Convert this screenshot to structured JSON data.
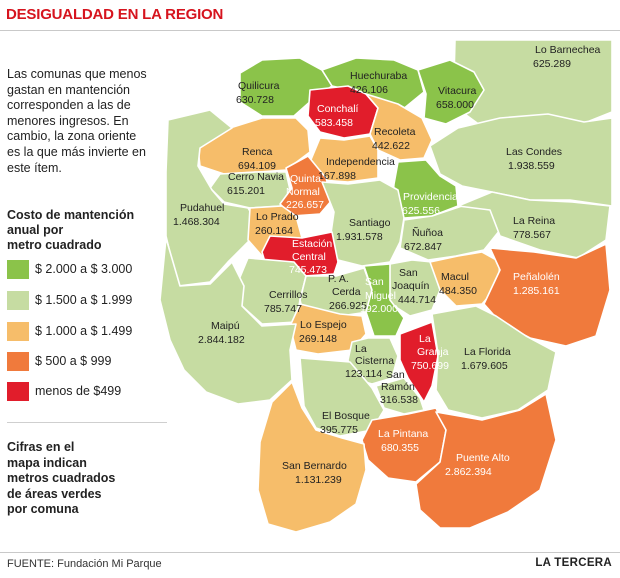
{
  "title": "DESIGUALDAD EN LA REGION",
  "intro": "Las comunas que menos\ngastan en mantención\ncorresponden a las de\nmenores ingresos. En\ncambio, la zona oriente\nes la que más invierte en\neste ítem.",
  "legend": {
    "title": "Costo de mantención\nanual por\nmetro cuadrado",
    "items": [
      {
        "label": "$ 2.000 a $ 3.000",
        "color": "#8bc34a"
      },
      {
        "label": "$ 1.500 a $ 1.999",
        "color": "#c6dca2"
      },
      {
        "label": "$ 1.000 a $ 1.499",
        "color": "#f6bd6a"
      },
      {
        "label": "$ 500 a $ 999",
        "color": "#f07a3c"
      },
      {
        "label": "menos de $499",
        "color": "#e11d2b"
      }
    ]
  },
  "note": "Cifras en el\nmapa indican\nmetros cuadrados\nde áreas verdes\npor comuna",
  "source": "FUENTE: Fundación Mi Parque",
  "brand": "LA TERCERA",
  "comunas": [
    {
      "id": "lo-barnechea",
      "name": "Lo Barnechea",
      "value": "625.289",
      "color": "#c6dca2"
    },
    {
      "id": "quilicura",
      "name": "Quilicura",
      "value": "630.728",
      "color": "#8bc34a"
    },
    {
      "id": "huechuraba",
      "name": "Huechuraba",
      "value": "426.106",
      "color": "#8bc34a"
    },
    {
      "id": "vitacura",
      "name": "Vitacura",
      "value": "658.000",
      "color": "#8bc34a"
    },
    {
      "id": "conchali",
      "name": "Conchalí",
      "value": "583.458",
      "color": "#e11d2b"
    },
    {
      "id": "recoleta",
      "name": "Recoleta",
      "value": "442.622",
      "color": "#f6bd6a"
    },
    {
      "id": "renca",
      "name": "Renca",
      "value": "694.109",
      "color": "#f6bd6a"
    },
    {
      "id": "independencia",
      "name": "Independencia",
      "value": "167.898",
      "color": "#f6bd6a"
    },
    {
      "id": "las-condes",
      "name": "Las Condes",
      "value": "1.938.559",
      "color": "#c6dca2"
    },
    {
      "id": "cerro-navia",
      "name": "Cerro Navia",
      "value": "615.201",
      "color": "#c6dca2"
    },
    {
      "id": "quinta-normal",
      "name": "Quinta Normal",
      "value": "226.657",
      "color": "#f07a3c"
    },
    {
      "id": "providencia",
      "name": "Providencia",
      "value": "625.556",
      "color": "#8bc34a"
    },
    {
      "id": "pudahuel",
      "name": "Pudahuel",
      "value": "1.468.304",
      "color": "#c6dca2"
    },
    {
      "id": "lo-prado",
      "name": "Lo Prado",
      "value": "260.164",
      "color": "#f6bd6a"
    },
    {
      "id": "santiago",
      "name": "Santiago",
      "value": "1.931.578",
      "color": "#c6dca2"
    },
    {
      "id": "nunoa",
      "name": "Ñuñoa",
      "value": "672.847",
      "color": "#c6dca2"
    },
    {
      "id": "la-reina",
      "name": "La Reina",
      "value": "778.567",
      "color": "#c6dca2"
    },
    {
      "id": "estacion-central",
      "name": "Estación Central",
      "value": "745.473",
      "color": "#e11d2b"
    },
    {
      "id": "san-joaquin",
      "name": "San Joaquín",
      "value": "444.714",
      "color": "#c6dca2"
    },
    {
      "id": "macul",
      "name": "Macul",
      "value": "484.350",
      "color": "#f6bd6a"
    },
    {
      "id": "penalolen",
      "name": "Peñalolén",
      "value": "1.285.161",
      "color": "#f07a3c"
    },
    {
      "id": "cerrillos",
      "name": "Cerrillos",
      "value": "785.747",
      "color": "#c6dca2"
    },
    {
      "id": "pa-cerda",
      "name": "P. A. Cerda",
      "value": "266.925",
      "color": "#c6dca2"
    },
    {
      "id": "san-miguel",
      "name": "San Miguel",
      "value": "192.000",
      "color": "#8bc34a"
    },
    {
      "id": "lo-espejo",
      "name": "Lo Espejo",
      "value": "269.148",
      "color": "#f6bd6a"
    },
    {
      "id": "maipu",
      "name": "Maipú",
      "value": "2.844.182",
      "color": "#c6dca2"
    },
    {
      "id": "la-granja",
      "name": "La Granja",
      "value": "750.699",
      "color": "#e11d2b"
    },
    {
      "id": "la-cisterna",
      "name": "La Cisterna",
      "value": "123.114",
      "color": "#c6dca2"
    },
    {
      "id": "la-florida",
      "name": "La Florida",
      "value": "1.679.605",
      "color": "#c6dca2"
    },
    {
      "id": "san-ramon",
      "name": "San Ramón",
      "value": "316.538",
      "color": "#c6dca2"
    },
    {
      "id": "el-bosque",
      "name": "El Bosque",
      "value": "395.775",
      "color": "#c6dca2"
    },
    {
      "id": "la-pintana",
      "name": "La Pintana",
      "value": "680.355",
      "color": "#f07a3c"
    },
    {
      "id": "puente-alto",
      "name": "Puente Alto",
      "value": "2.862.394",
      "color": "#f07a3c"
    },
    {
      "id": "san-bernardo",
      "name": "San Bernardo",
      "value": "1.131.239",
      "color": "#f6bd6a"
    }
  ]
}
